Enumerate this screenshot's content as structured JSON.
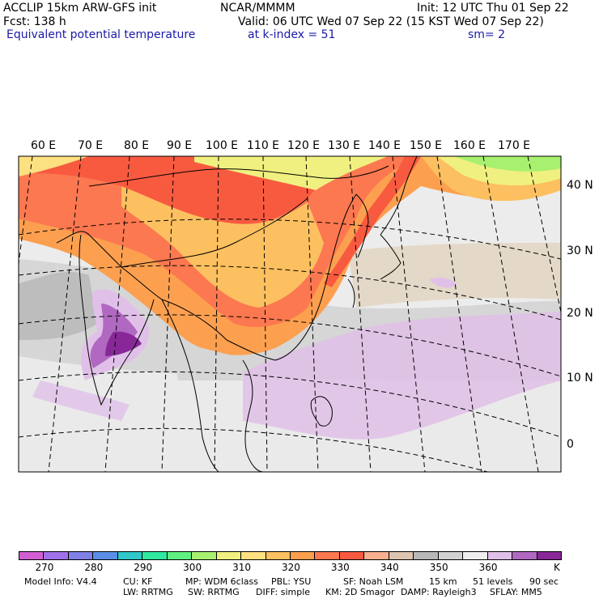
{
  "header": {
    "model": "ACCLIP 15km ARW-GFS init",
    "source": "NCAR/MMMM",
    "init": "Init: 12 UTC Thu 01 Sep 22",
    "fcst": "Fcst:  138 h",
    "valid": "Valid: 06 UTC Wed 07 Sep 22 (15 KST Wed 07 Sep 22)",
    "field": "Equivalent potential temperature",
    "level": "at k-index =  51",
    "smooth": "sm= 2"
  },
  "map": {
    "lon_labels": [
      "60 E",
      "70 E",
      "80 E",
      "90 E",
      "100 E",
      "110 E",
      "120 E",
      "130 E",
      "140 E",
      "150 E",
      "160 E",
      "170 E"
    ],
    "lat_labels": [
      "40 N",
      "30 N",
      "20 N",
      "10 N",
      "0"
    ]
  },
  "colorbar": {
    "unit": "K",
    "colors": [
      "#d25fd2",
      "#a070e8",
      "#7f7fe6",
      "#5a8ee6",
      "#30c8c8",
      "#30e8a0",
      "#60f080",
      "#a8f070",
      "#f0f080",
      "#fde080",
      "#fcc060",
      "#fca050",
      "#fc7850",
      "#f85a40",
      "#f8b090",
      "#dcc4ae",
      "#b8b8b8",
      "#d2d2d2",
      "#eeeeee",
      "#e0c0e8",
      "#b068c0",
      "#882898"
    ],
    "labels": [
      "270",
      "280",
      "290",
      "300",
      "310",
      "320",
      "330",
      "340",
      "350",
      "360"
    ]
  },
  "model_info": {
    "line1": [
      "Model Info: V4.4",
      "CU: KF",
      "MP: WDM 6class",
      "PBL: YSU",
      "SF: Noah LSM",
      "15 km",
      "51 levels",
      "90 sec"
    ],
    "line2": [
      "LW: RRTMG",
      "SW: RRTMG",
      "DIFF: simple",
      "KM: 2D Smagor",
      "DAMP: Rayleigh3",
      "SFLAY: MM5"
    ]
  }
}
